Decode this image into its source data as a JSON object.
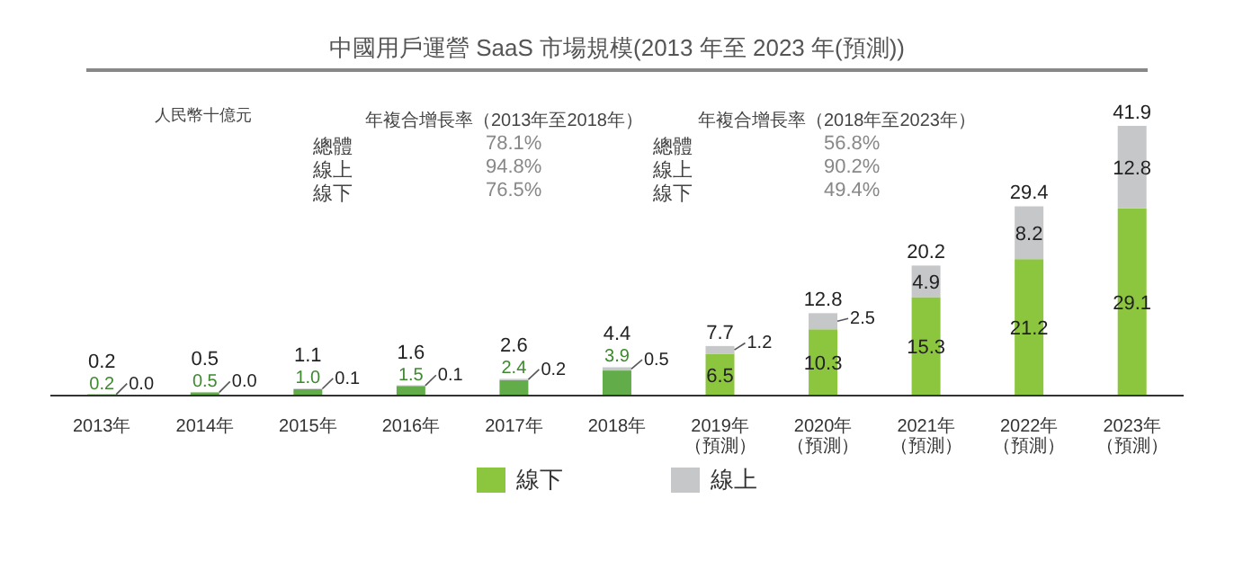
{
  "chart_data": {
    "type": "bar",
    "title": "中國用戶運營 SaaS 市場規模(2013 年至 2023 年(預測))",
    "categories": [
      "2013年",
      "2014年",
      "2015年",
      "2016年",
      "2017年",
      "2018年",
      "2019年（預測）",
      "2020年（預測）",
      "2021年（預測）",
      "2022年（預測）",
      "2023年（預測）"
    ],
    "series": [
      {
        "name": "線下",
        "color": "#8cc63f",
        "colors": [
          "#62ad4a",
          "#62ad4a",
          "#62ad4a",
          "#62ad4a",
          "#62ad4a",
          "#62ad4a",
          "#8cc63f",
          "#8cc63f",
          "#8cc63f",
          "#8cc63f",
          "#8cc63f"
        ],
        "values": [
          0.2,
          0.5,
          1.0,
          1.5,
          2.4,
          3.9,
          6.5,
          10.3,
          15.3,
          21.2,
          29.1
        ],
        "value_labels": [
          "0.2",
          "0.5",
          "1.0",
          "1.5",
          "2.4",
          "3.9",
          "6.5",
          "10.3",
          "15.3",
          "21.2",
          "29.1"
        ]
      },
      {
        "name": "線上",
        "color": "#c6c7c9",
        "values": [
          0.0,
          0.0,
          0.1,
          0.1,
          0.2,
          0.5,
          1.2,
          2.5,
          4.9,
          8.2,
          12.8
        ],
        "value_labels": [
          "0.0",
          "0.0",
          "0.1",
          "0.1",
          "0.2",
          "0.5",
          "1.2",
          "2.5",
          "4.9",
          "8.2",
          "12.8"
        ]
      }
    ],
    "stacked": true,
    "totals": [
      "0.2",
      "0.5",
      "1.1",
      "1.6",
      "2.6",
      "4.4",
      "7.7",
      "12.8",
      "20.2",
      "29.4",
      "41.9"
    ],
    "legend": "bottom",
    "grid": false,
    "annotations": [
      "人民幣十億元",
      "年複合增長率（2013年至2018年）",
      "年複合增長率（2018年至2023年）",
      "總體",
      "78.1%",
      "總體",
      "56.8%",
      "線上",
      "94.8%",
      "線上",
      "90.2%",
      "線下",
      "76.5%",
      "線下",
      "49.4%"
    ]
  }
}
